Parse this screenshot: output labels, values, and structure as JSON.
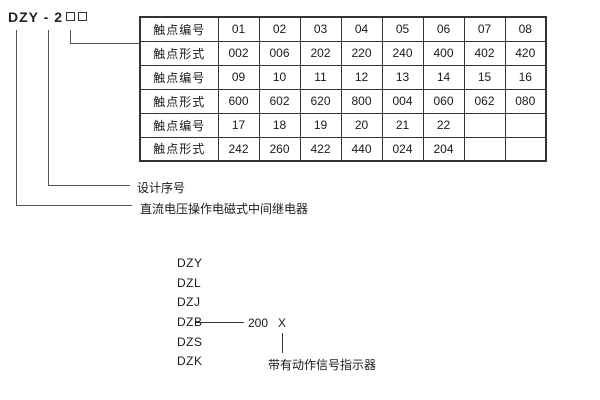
{
  "model": {
    "prefix": "DZY - 2",
    "placeholder_box_count": 2
  },
  "annotations": {
    "design_serial": "设计序号",
    "relay_description": "直流电压操作电磁式中间继电器"
  },
  "table": {
    "row_label_number": "触点编号",
    "row_label_form": "触点形式",
    "rows": [
      {
        "label": "触点编号",
        "values": [
          "01",
          "02",
          "03",
          "04",
          "05",
          "06",
          "07",
          "08"
        ]
      },
      {
        "label": "触点形式",
        "values": [
          "002",
          "006",
          "202",
          "220",
          "240",
          "400",
          "402",
          "420"
        ]
      },
      {
        "label": "触点编号",
        "values": [
          "09",
          "10",
          "11",
          "12",
          "13",
          "14",
          "15",
          "16"
        ]
      },
      {
        "label": "触点形式",
        "values": [
          "600",
          "602",
          "620",
          "800",
          "004",
          "060",
          "062",
          "080"
        ]
      },
      {
        "label": "触点编号",
        "values": [
          "17",
          "18",
          "19",
          "20",
          "21",
          "22",
          "",
          ""
        ]
      },
      {
        "label": "触点形式",
        "values": [
          "242",
          "260",
          "422",
          "440",
          "024",
          "204",
          "",
          ""
        ]
      }
    ]
  },
  "model_codes": {
    "items": [
      "DZY",
      "DZL",
      "DZJ",
      "DZB",
      "DZS",
      "DZK"
    ],
    "dzb_suffix_number": "200",
    "dzb_suffix_x": "X",
    "indicator_label": "带有动作信号指示器"
  },
  "colors": {
    "text": "#1a1a1a",
    "table_border": "#333333",
    "callout_line": "#555555",
    "background": "#ffffff"
  }
}
